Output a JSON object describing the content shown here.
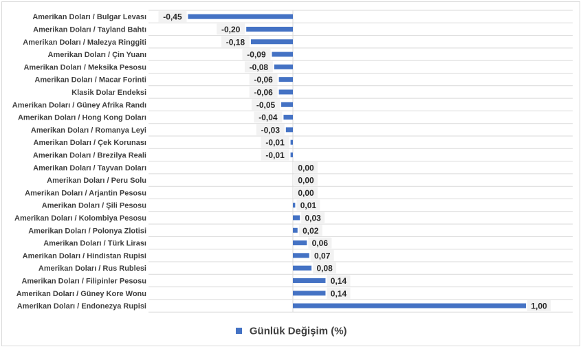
{
  "chart_data": {
    "type": "bar",
    "orientation": "horizontal",
    "categories": [
      "Amerikan Doları / Bulgar Levası",
      "Amerikan Doları / Tayland Bahtı",
      "Amerikan Doları / Malezya Ringgiti",
      "Amerikan Doları / Çin Yuanı",
      "Amerikan Doları / Meksika Pesosu",
      "Amerikan Doları / Macar Forinti",
      "Klasik Dolar Endeksi",
      "Amerikan Doları / Güney Afrika Randı",
      "Amerikan Doları / Hong Kong Doları",
      "Amerikan Doları / Romanya Leyi",
      "Amerikan Doları / Çek Korunası",
      "Amerikan Doları / Brezilya Reali",
      "Amerikan Doları /  Tayvan Doları",
      "Amerikan Doları / Peru Solu",
      "Amerikan Doları / Arjantin Pesosu",
      "Amerikan Doları / Şili Pesosu",
      "Amerikan Doları / Kolombiya Pesosu",
      "Amerikan Doları / Polonya Zlotisi",
      "Amerikan Doları / Türk Lirası",
      "Amerikan Doları / Hindistan Rupisi",
      "Amerikan Doları / Rus Rublesi",
      "Amerikan Doları / Filipinler Pesosu",
      "Amerikan Doları / Güney Kore Wonu",
      "Amerikan Doları / Endonezya Rupisi"
    ],
    "series": [
      {
        "name": "Günlük Değişim (%)",
        "values": [
          -0.45,
          -0.2,
          -0.18,
          -0.09,
          -0.08,
          -0.06,
          -0.06,
          -0.05,
          -0.04,
          -0.03,
          -0.01,
          -0.01,
          0.0,
          0.0,
          0.0,
          0.01,
          0.03,
          0.02,
          0.06,
          0.07,
          0.08,
          0.14,
          0.14,
          1.0
        ],
        "labels": [
          "-0,45",
          "-0,20",
          "-0,18",
          "-0,09",
          "-0,08",
          "-0,06",
          "-0,06",
          "-0,05",
          "-0,04",
          "-0,03",
          "-0,01",
          "-0,01",
          "0,00",
          "0,00",
          "0,00",
          "0,01",
          "0,03",
          "0,02",
          "0,06",
          "0,07",
          "0,08",
          "0,14",
          "0,14",
          "1,00"
        ]
      }
    ],
    "xlim": [
      -0.5,
      1.0
    ],
    "grid": true,
    "legend_position": "bottom",
    "bar_color": "#4472c4"
  }
}
